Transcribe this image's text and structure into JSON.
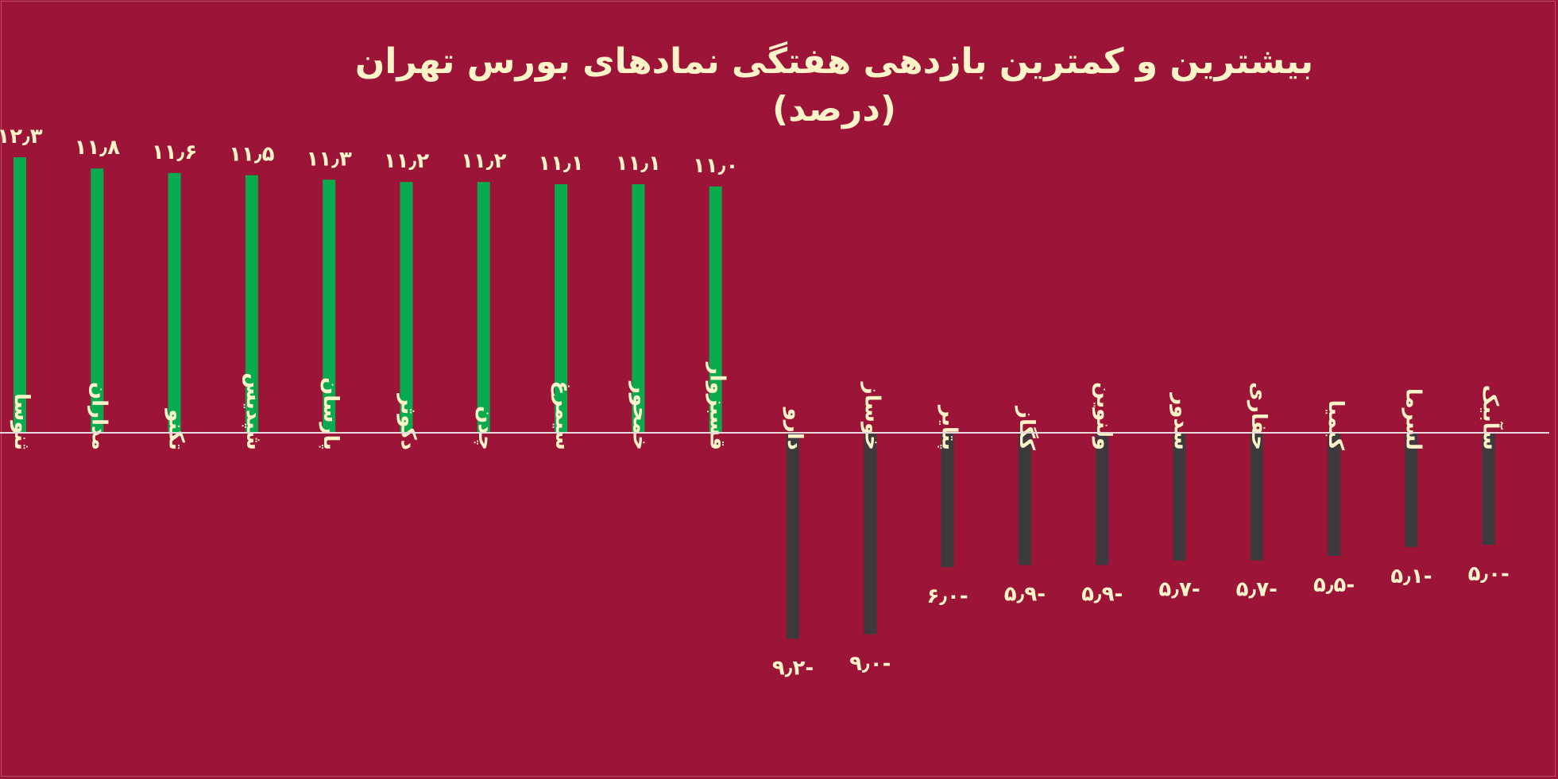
{
  "colors": {
    "background": "#9c1538",
    "positive_bar": "#0aaa4f",
    "negative_bar": "#3c3a3c",
    "text": "#fdf3c8",
    "axis": "#e8d8dc"
  },
  "chart_data": {
    "type": "bar",
    "title": "بیشترین و کمترین بازدهی هفتگی نمادهای بورس تهران (درصد)",
    "xlabel": "",
    "ylabel": "",
    "grid": false,
    "legend": "none",
    "ylim": [
      -10,
      13
    ],
    "categories": [
      "ثنوسا",
      "مداران",
      "تکنو",
      "شپدیس",
      "پارسان",
      "دکوثر",
      "چدن",
      "سیمرغ",
      "خمحور",
      "قسبزوار",
      "دارو",
      "خوساز",
      "پتایر",
      "کگاز",
      "ولنوین",
      "سدور",
      "حفاری",
      "کیمیا",
      "لسرما",
      "سآبیک"
    ],
    "values": [
      12.3,
      11.8,
      11.6,
      11.5,
      11.3,
      11.2,
      11.2,
      11.1,
      11.1,
      11.0,
      -9.2,
      -9.0,
      -6.0,
      -5.9,
      -5.9,
      -5.7,
      -5.7,
      -5.5,
      -5.1,
      -5.0
    ],
    "value_labels": [
      "۱۲٫۳",
      "۱۱٫۸",
      "۱۱٫۶",
      "۱۱٫۵",
      "۱۱٫۳",
      "۱۱٫۲",
      "۱۱٫۲",
      "۱۱٫۱",
      "۱۱٫۱",
      "۱۱٫۰",
      "-۹٫۲",
      "-۹٫۰",
      "-۶٫۰",
      "-۵٫۹",
      "-۵٫۹",
      "-۵٫۷",
      "-۵٫۷",
      "-۵٫۵",
      "-۵٫۱",
      "-۵٫۰"
    ]
  }
}
